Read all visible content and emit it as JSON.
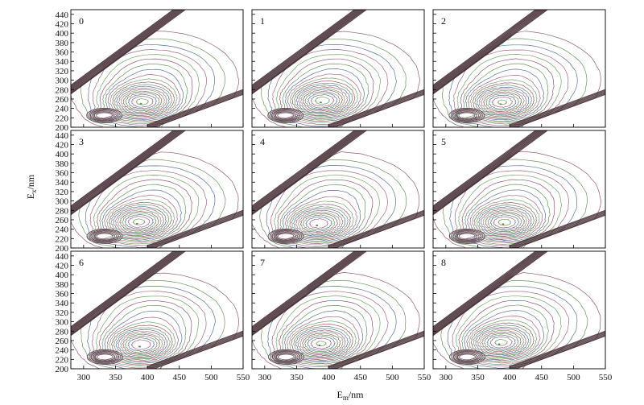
{
  "chart_data": {
    "type": "contour",
    "layout": "3x3 grid of small multiples",
    "xlabel": "E",
    "xlabel_sub": "m",
    "xlabel_unit": "/nm",
    "ylabel": "E",
    "ylabel_sub": "x",
    "ylabel_unit": "/nm",
    "xlim": [
      280,
      550
    ],
    "ylim": [
      200,
      450
    ],
    "x_ticks": [
      300,
      350,
      400,
      450,
      500,
      550
    ],
    "y_ticks": [
      200,
      220,
      240,
      260,
      280,
      300,
      320,
      340,
      360,
      380,
      400,
      420,
      440
    ],
    "panels": [
      {
        "label": "0"
      },
      {
        "label": "1"
      },
      {
        "label": "2"
      },
      {
        "label": "3"
      },
      {
        "label": "4"
      },
      {
        "label": "5"
      },
      {
        "label": "6"
      },
      {
        "label": "7"
      },
      {
        "label": "8"
      }
    ],
    "features": {
      "peak_a": {
        "em": 330,
        "ex": 225
      },
      "peak_b": {
        "em": 385,
        "ex": 250
      },
      "rayleigh_scatter": "Ex = Em",
      "second_order_scatter": "Ex = Em / 2"
    },
    "colors": {
      "contour_series": [
        "#8a4a66",
        "#5d8a52",
        "#4e6694",
        "#9a5a7a",
        "#6c9a5c"
      ],
      "scatter_band": "#3a2229",
      "frame": "#000000"
    }
  }
}
